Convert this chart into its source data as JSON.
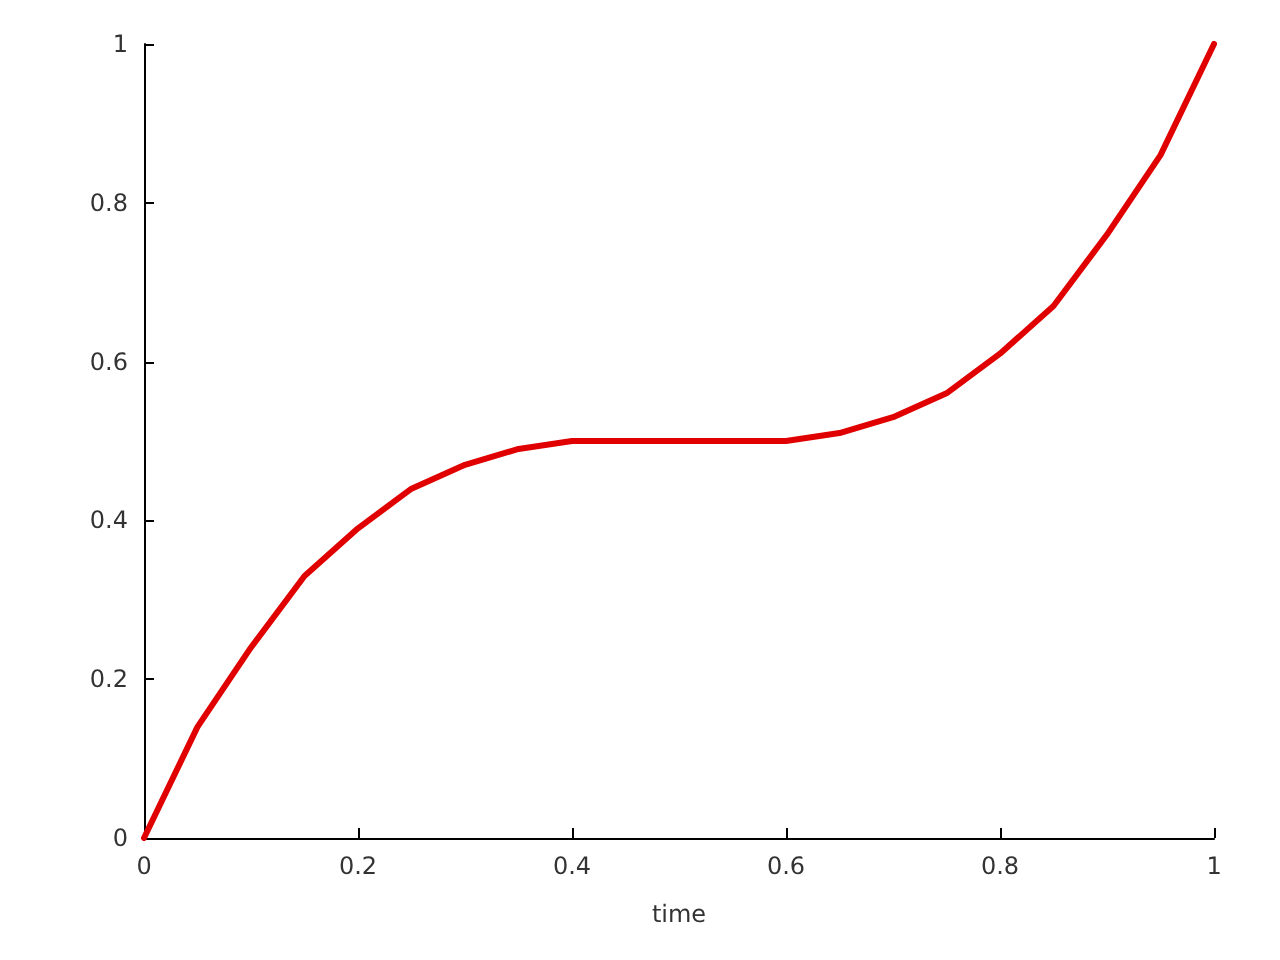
{
  "chart_data": {
    "type": "line",
    "xlabel": "time",
    "x": [
      0,
      0.05,
      0.1,
      0.15,
      0.2,
      0.25,
      0.3,
      0.35,
      0.4,
      0.45,
      0.5,
      0.55,
      0.6,
      0.65,
      0.7,
      0.75,
      0.8,
      0.85,
      0.9,
      0.95,
      1
    ],
    "series": [
      {
        "color": "#e00000",
        "values": [
          0,
          0.14,
          0.24,
          0.33,
          0.39,
          0.44,
          0.47,
          0.49,
          0.5,
          0.5,
          0.5,
          0.5,
          0.5,
          0.51,
          0.53,
          0.56,
          0.61,
          0.67,
          0.76,
          0.86,
          1
        ]
      }
    ],
    "xlim": [
      0,
      1
    ],
    "ylim": [
      0,
      1
    ],
    "xticks": [
      0,
      0.2,
      0.4,
      0.6,
      0.8,
      1
    ],
    "yticks": [
      0,
      0.2,
      0.4,
      0.6,
      0.8,
      1
    ],
    "grid": false,
    "marker": "none",
    "line_style": "solid"
  }
}
